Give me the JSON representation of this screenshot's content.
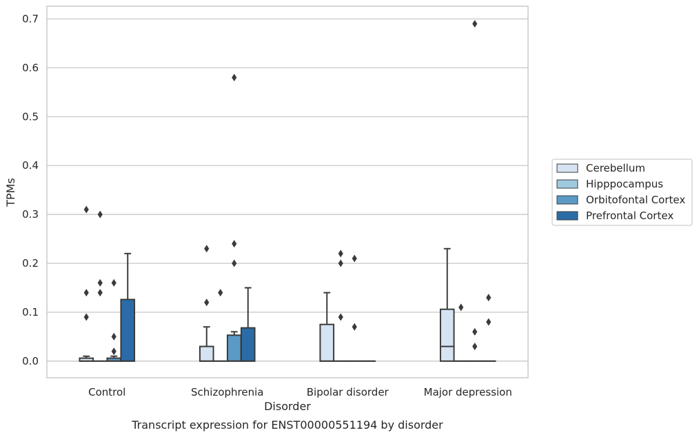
{
  "chart_data": {
    "type": "box",
    "caption": "Transcript expression for ENST00000551194 by disorder",
    "xlabel": "Disorder",
    "ylabel": "TPMs",
    "ylim": [
      -0.034,
      0.726
    ],
    "yticks": [
      0.0,
      0.1,
      0.2,
      0.3,
      0.4,
      0.5,
      0.6,
      0.7
    ],
    "ytick_labels": [
      "0.0",
      "0.1",
      "0.2",
      "0.3",
      "0.4",
      "0.5",
      "0.6",
      "0.7"
    ],
    "grid": "horizontal",
    "legend_position": "right",
    "categories": [
      "Control",
      "Schizophrenia",
      "Bipolar disorder",
      "Major depression"
    ],
    "series": [
      {
        "name": "Cerebellum",
        "color": "#d5e3f2",
        "boxes": [
          {
            "q1": 0.0,
            "median": 0.0,
            "q3": 0.006,
            "whisker_low": 0.0,
            "whisker_high": 0.01,
            "outliers": [
              0.09,
              0.14,
              0.31
            ]
          },
          {
            "q1": 0.0,
            "median": 0.0,
            "q3": 0.03,
            "whisker_low": 0.0,
            "whisker_high": 0.07,
            "outliers": [
              0.12,
              0.23
            ]
          },
          {
            "q1": 0.0,
            "median": 0.0,
            "q3": 0.075,
            "whisker_low": 0.0,
            "whisker_high": 0.14,
            "outliers": []
          },
          {
            "q1": 0.0,
            "median": 0.03,
            "q3": 0.106,
            "whisker_low": 0.0,
            "whisker_high": 0.23,
            "outliers": []
          }
        ]
      },
      {
        "name": "Hipppocampus",
        "color": "#9fc9df",
        "boxes": [
          {
            "q1": 0.0,
            "median": 0.0,
            "q3": 0.0,
            "whisker_low": 0.0,
            "whisker_high": 0.0,
            "outliers": [
              0.14,
              0.16,
              0.3
            ]
          },
          {
            "q1": 0.0,
            "median": 0.0,
            "q3": 0.0,
            "whisker_low": 0.0,
            "whisker_high": 0.0,
            "outliers": [
              0.14
            ]
          },
          {
            "q1": 0.0,
            "median": 0.0,
            "q3": 0.0,
            "whisker_low": 0.0,
            "whisker_high": 0.0,
            "outliers": [
              0.09,
              0.2,
              0.22
            ]
          },
          {
            "q1": 0.0,
            "median": 0.0,
            "q3": 0.0,
            "whisker_low": 0.0,
            "whisker_high": 0.0,
            "outliers": [
              0.11
            ]
          }
        ]
      },
      {
        "name": "Orbitofontal Cortex",
        "color": "#5b9ac5",
        "boxes": [
          {
            "q1": 0.0,
            "median": 0.0,
            "q3": 0.006,
            "whisker_low": 0.0,
            "whisker_high": 0.01,
            "outliers": [
              0.02,
              0.05,
              0.16
            ]
          },
          {
            "q1": 0.0,
            "median": 0.0,
            "q3": 0.053,
            "whisker_low": 0.0,
            "whisker_high": 0.06,
            "outliers": [
              0.2,
              0.24,
              0.58
            ]
          },
          {
            "q1": 0.0,
            "median": 0.0,
            "q3": 0.0,
            "whisker_low": 0.0,
            "whisker_high": 0.0,
            "outliers": [
              0.07,
              0.21
            ]
          },
          {
            "q1": 0.0,
            "median": 0.0,
            "q3": 0.0,
            "whisker_low": 0.0,
            "whisker_high": 0.0,
            "outliers": [
              0.03,
              0.06,
              0.69
            ]
          }
        ]
      },
      {
        "name": "Prefrontal Cortex",
        "color": "#2b6ca8",
        "boxes": [
          {
            "q1": 0.0,
            "median": 0.0,
            "q3": 0.126,
            "whisker_low": 0.0,
            "whisker_high": 0.22,
            "outliers": []
          },
          {
            "q1": 0.0,
            "median": 0.0,
            "q3": 0.068,
            "whisker_low": 0.0,
            "whisker_high": 0.15,
            "outliers": []
          },
          {
            "q1": 0.0,
            "median": 0.0,
            "q3": 0.0,
            "whisker_low": 0.0,
            "whisker_high": 0.0,
            "outliers": []
          },
          {
            "q1": 0.0,
            "median": 0.0,
            "q3": 0.0,
            "whisker_low": 0.0,
            "whisker_high": 0.0,
            "outliers": [
              0.08,
              0.13
            ]
          }
        ]
      }
    ]
  }
}
